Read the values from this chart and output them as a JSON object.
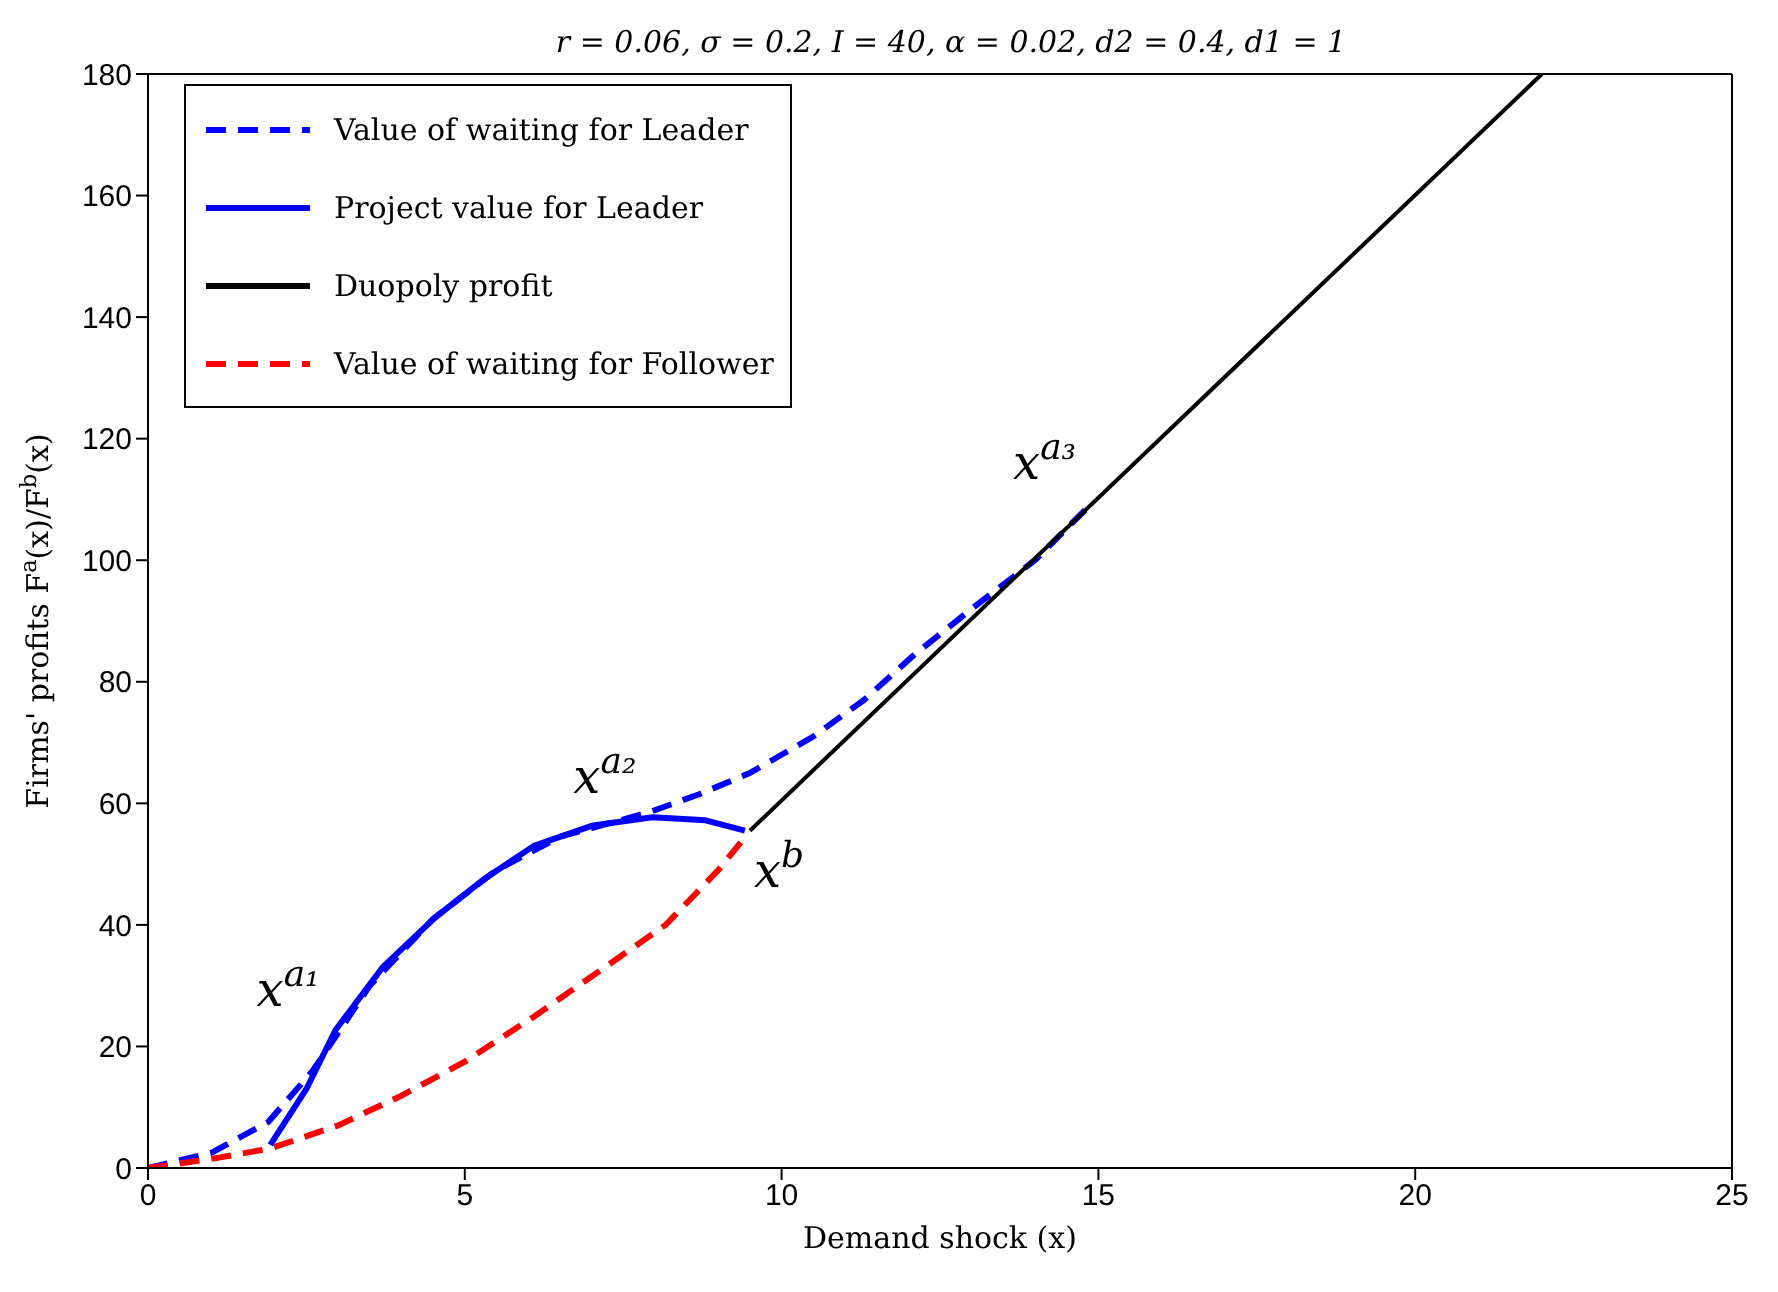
{
  "chart_data": {
    "type": "line",
    "title": "r = 0.06, σ = 0.2, I = 40, α = 0.02, d2 = 0.4, d1 = 1",
    "xlabel": "Demand shock (x)",
    "ylabel": "Firms' profits F$^{a}$(x)/F$^{b}$(x)",
    "xlim": [
      0,
      25
    ],
    "xticks": [
      0,
      5,
      10,
      15,
      20,
      25
    ],
    "ylim": [
      0,
      180
    ],
    "yticks": [
      0,
      20,
      40,
      60,
      80,
      100,
      120,
      140,
      160,
      180
    ],
    "grid": false,
    "legend": "top left",
    "marker": "none",
    "series": [
      {
        "name": "Value of waiting for Leader",
        "color": "#0000ff",
        "line_style": "dashed",
        "x": [
          0,
          1,
          1.9,
          2.6,
          3.5,
          4.5,
          5.5,
          6.5,
          7.9,
          8.7,
          9.5,
          10.5,
          11.3,
          12.1,
          13,
          14,
          14.9
        ],
        "values": [
          0,
          2.5,
          7.6,
          16,
          30,
          41,
          49,
          54.5,
          58.5,
          61.5,
          65,
          71,
          77,
          84.5,
          92,
          100,
          109.4
        ]
      },
      {
        "name": "Project value for Leader",
        "color": "#0000ff",
        "line_style": "solid",
        "x": [
          1.93,
          2.5,
          2.96,
          3.7,
          4.53,
          5.3,
          6.09,
          7,
          7.96,
          8.8,
          9.42
        ],
        "values": [
          3.8,
          13,
          22.7,
          33,
          41.2,
          47.5,
          53,
          56.3,
          57.7,
          57.2,
          55.5
        ]
      },
      {
        "name": "Duopoly profit",
        "color": "#000000",
        "line_style": "solid",
        "x": [
          9.5,
          22
        ],
        "values": [
          55.5,
          180
        ]
      },
      {
        "name": "Value of waiting for Follower",
        "color": "#ff0000",
        "line_style": "dashed",
        "x": [
          0,
          1,
          1.93,
          3,
          4,
          5,
          6.09,
          7,
          8.17,
          9,
          9.42
        ],
        "values": [
          0,
          1.5,
          3.2,
          7,
          11.9,
          17.5,
          24.9,
          31.5,
          40,
          49,
          54.4
        ]
      }
    ],
    "annotations": [
      {
        "text": "x$^{a₁}$",
        "x": 2.96,
        "y": 22.7
      },
      {
        "text": "x$^{a₂}$",
        "x": 7.96,
        "y": 57.7
      },
      {
        "text": "x$^{a₃}$",
        "x": 14.9,
        "y": 109.4
      },
      {
        "text": "x$^{b}$",
        "x": 9.5,
        "y": 55.5
      }
    ]
  }
}
